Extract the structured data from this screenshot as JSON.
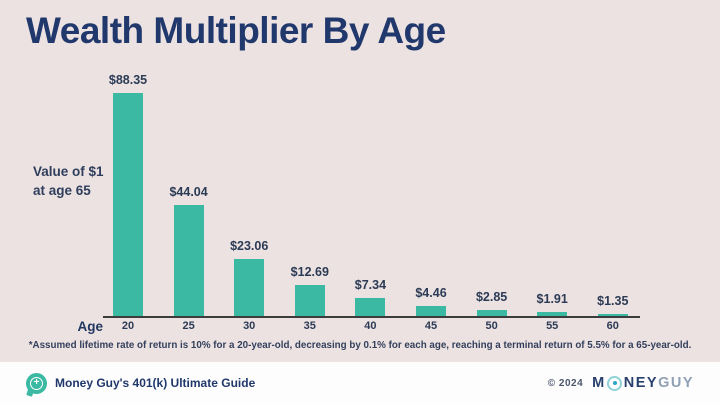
{
  "title": "Wealth Multiplier By Age",
  "y_annotation_line1": "Value of $1",
  "y_annotation_line2": "at age 65",
  "footnote": "*Assumed lifetime rate of return is 10% for a 20-year-old, decreasing by 0.1% for each age, reaching a terminal return of 5.5% for a 65-year-old.",
  "footer": {
    "left_text": "Money Guy's 401(k) Ultimate Guide",
    "copyright": "© 2024",
    "brand_m": "M",
    "brand_ney": "NEY",
    "brand_guy": "GUY"
  },
  "colors": {
    "background": "#ece2e2",
    "bar": "#3cb9a3",
    "navy": "#20386b",
    "footer_bg": "#fdfdfd"
  },
  "chart_data": {
    "type": "bar",
    "title": "Wealth Multiplier By Age",
    "xlabel": "Age",
    "ylabel": "Value of $1 at age 65",
    "categories": [
      "20",
      "25",
      "30",
      "35",
      "40",
      "45",
      "50",
      "55",
      "60"
    ],
    "values": [
      88.35,
      44.04,
      23.06,
      12.69,
      7.34,
      4.46,
      2.85,
      1.91,
      1.35
    ],
    "labels": [
      "$88.35",
      "$44.04",
      "$23.06",
      "$12.69",
      "$7.34",
      "$4.46",
      "$2.85",
      "$1.91",
      "$1.35"
    ],
    "ylim": [
      0,
      95
    ],
    "grid": false,
    "legend": false,
    "bar_color": "#3cb9a3"
  }
}
